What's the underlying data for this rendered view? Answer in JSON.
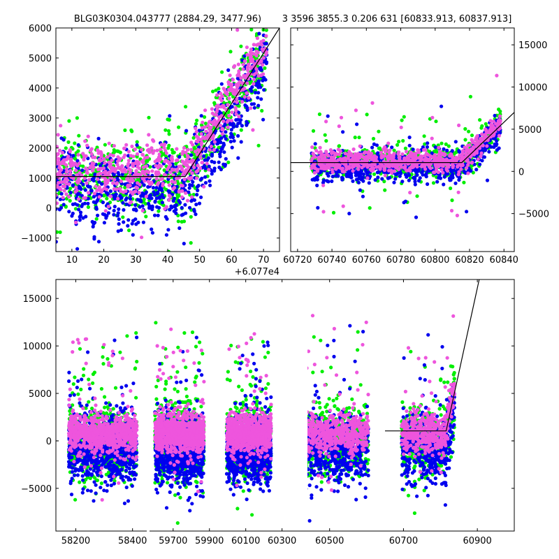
{
  "chart_data": [
    {
      "id": "panel_a",
      "type": "scatter",
      "title": "BLG03K0304.043777 (2884.29, 3477.96)",
      "offset_label": "+6.077e4",
      "xlim": [
        5,
        75
      ],
      "ylim": [
        -1450,
        6000
      ],
      "xticks": [
        10,
        20,
        30,
        40,
        50,
        60,
        70
      ],
      "yticks": [
        -1000,
        0,
        1000,
        2000,
        3000,
        4000,
        5000,
        6000
      ],
      "model_line": {
        "x": [
          5,
          45.5,
          75
        ],
        "y": [
          1050,
          1050,
          6000
        ]
      },
      "series_colors": [
        "#00ee00",
        "#0000ee",
        "#ee55dd"
      ],
      "seed": 11
    },
    {
      "id": "panel_b",
      "type": "scatter",
      "title": "3 3596 3855.3 0.206 631 [60833.913, 60837.913]",
      "xlim": [
        60716,
        60846
      ],
      "ylim": [
        -9500,
        17000
      ],
      "xticks": [
        60720,
        60740,
        60760,
        60780,
        60800,
        60820,
        60840
      ],
      "yticks": [
        -5000,
        0,
        5000,
        10000,
        15000
      ],
      "model_line": {
        "x": [
          60716,
          60815.5,
          60846
        ],
        "y": [
          1050,
          1050,
          7000
        ]
      },
      "series_colors": [
        "#00ee00",
        "#0000ee",
        "#ee55dd"
      ],
      "seed": 23
    },
    {
      "id": "panel_c",
      "type": "scatter",
      "title": "",
      "ylim": [
        -9500,
        17000
      ],
      "segments": [
        {
          "xlim": [
            58130,
            58450
          ],
          "xticks": [
            58200,
            58400
          ],
          "seasons": [
            [
              58175,
              58415
            ]
          ]
        },
        {
          "xlim": [
            59570,
            60440
          ],
          "xticks": [
            59700,
            59900,
            60100,
            60300
          ],
          "seasons": [
            [
              59600,
              59870
            ],
            [
              59995,
              60240
            ]
          ]
        },
        {
          "xlim": [
            60440,
            61000
          ],
          "xticks": [
            60500,
            60700,
            60900
          ],
          "seasons": [
            [
              60380,
              60605
            ],
            [
              60695,
              60838
            ]
          ]
        }
      ],
      "yticks": [
        -5000,
        0,
        5000,
        10000,
        15000
      ],
      "model_line": {
        "x": [
          60650,
          60815.5,
          60905
        ],
        "y": [
          1050,
          1050,
          17000
        ]
      },
      "series_colors": [
        "#00ee00",
        "#0000ee",
        "#ee55dd"
      ],
      "seed": 37
    }
  ]
}
